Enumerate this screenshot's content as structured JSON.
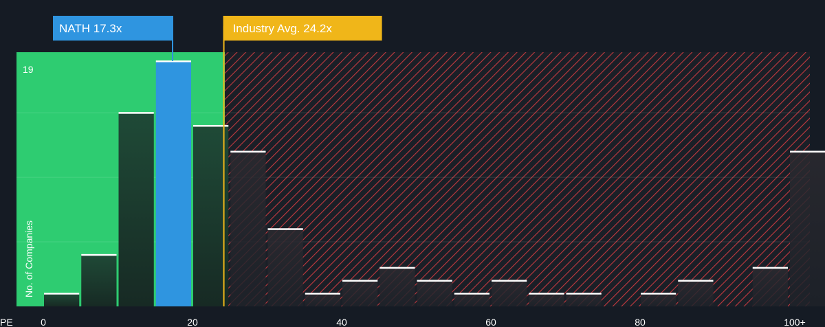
{
  "chart_data": {
    "type": "bar",
    "x_axis_label": "PE",
    "y_axis_label": "No. of Companies",
    "x_ticks": [
      "0",
      "20",
      "40",
      "60",
      "80",
      "100+"
    ],
    "y_max_label": "19",
    "ylim": [
      0,
      19
    ],
    "bins": [
      {
        "from": 0,
        "to": 5,
        "value": 1
      },
      {
        "from": 5,
        "to": 10,
        "value": 4
      },
      {
        "from": 10,
        "to": 15,
        "value": 15
      },
      {
        "from": 15,
        "to": 20,
        "value": 19
      },
      {
        "from": 20,
        "to": 25,
        "value": 14
      },
      {
        "from": 25,
        "to": 30,
        "value": 12
      },
      {
        "from": 30,
        "to": 35,
        "value": 6
      },
      {
        "from": 35,
        "to": 40,
        "value": 1
      },
      {
        "from": 40,
        "to": 45,
        "value": 2
      },
      {
        "from": 45,
        "to": 50,
        "value": 3
      },
      {
        "from": 50,
        "to": 55,
        "value": 2
      },
      {
        "from": 55,
        "to": 60,
        "value": 1
      },
      {
        "from": 60,
        "to": 65,
        "value": 2
      },
      {
        "from": 65,
        "to": 70,
        "value": 1
      },
      {
        "from": 70,
        "to": 75,
        "value": 1
      },
      {
        "from": 75,
        "to": 80,
        "value": 0
      },
      {
        "from": 80,
        "to": 85,
        "value": 1
      },
      {
        "from": 85,
        "to": 90,
        "value": 2
      },
      {
        "from": 90,
        "to": 95,
        "value": 0
      },
      {
        "from": 95,
        "to": 100,
        "value": 3
      },
      {
        "from": 100,
        "to": 105,
        "value": 12
      }
    ],
    "company": {
      "label": "NATH 17.3x",
      "value": 17.3,
      "color": "#2f95e0"
    },
    "industry_avg": {
      "label": "Industry Avg. 24.2x",
      "value": 24.2,
      "color": "#f0b619"
    },
    "colors": {
      "background": "#151b24",
      "fair_zone": "#2ecc71",
      "overvalued_zone": "#c0392b",
      "bar_dark": "#1c3a2c",
      "bar_top": "#ffffff"
    }
  }
}
